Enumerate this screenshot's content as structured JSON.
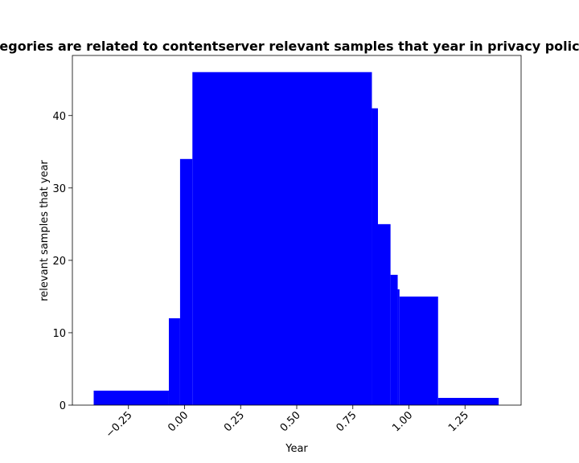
{
  "chart_data": {
    "type": "bar",
    "title": "egories are related to contentserver relevant samples that year in privacy polic",
    "xlabel": "Year",
    "ylabel": "relevant samples that year",
    "xlim": [
      -0.5,
      1.5
    ],
    "ylim": [
      0,
      48.3
    ],
    "bar_color": "#0000ff",
    "grid": false,
    "legend": "none",
    "x_ticks": [
      -0.25,
      0.0,
      0.25,
      0.5,
      0.75,
      1.0,
      1.25
    ],
    "x_tick_labels": [
      "−0.25",
      "0.00",
      "0.25",
      "0.50",
      "0.75",
      "1.00",
      "1.25"
    ],
    "y_ticks": [
      0,
      10,
      20,
      30,
      40
    ],
    "y_tick_labels": [
      "0",
      "10",
      "20",
      "30",
      "40"
    ],
    "bars": [
      {
        "x0": -0.405,
        "x1": -0.07,
        "value": 2
      },
      {
        "x0": -0.07,
        "x1": -0.02,
        "value": 12
      },
      {
        "x0": -0.02,
        "x1": 0.035,
        "value": 34
      },
      {
        "x0": 0.035,
        "x1": 0.835,
        "value": 46
      },
      {
        "x0": 0.835,
        "x1": 0.862,
        "value": 41
      },
      {
        "x0": 0.862,
        "x1": 0.918,
        "value": 25
      },
      {
        "x0": 0.918,
        "x1": 0.95,
        "value": 18
      },
      {
        "x0": 0.95,
        "x1": 0.958,
        "value": 16
      },
      {
        "x0": 0.958,
        "x1": 1.13,
        "value": 15
      },
      {
        "x0": 1.13,
        "x1": 1.4,
        "value": 1
      }
    ]
  }
}
